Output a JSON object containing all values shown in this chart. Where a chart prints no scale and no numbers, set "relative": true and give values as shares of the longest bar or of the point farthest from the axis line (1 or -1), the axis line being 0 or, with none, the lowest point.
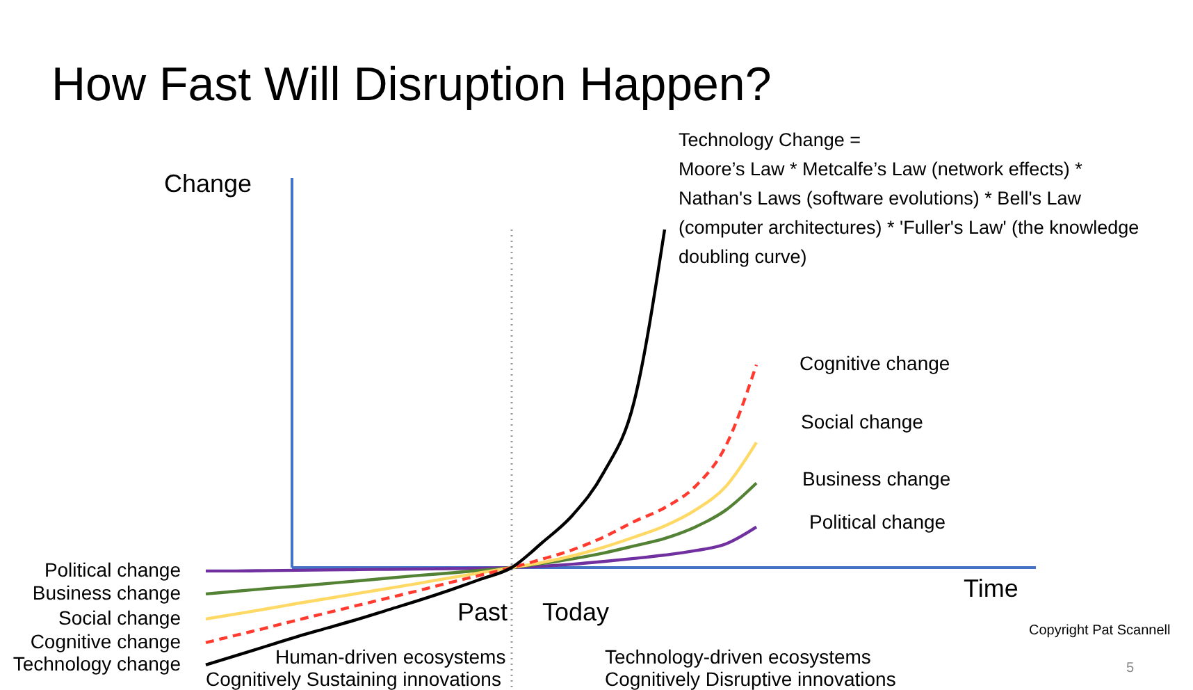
{
  "chart_data": {
    "type": "line",
    "relative": true,
    "title": "How Fast Will Disruption Happen?",
    "ylabel": "Change",
    "categories": [
      null,
      null,
      null,
      null,
      null,
      null,
      null,
      null,
      null,
      null,
      null,
      null,
      null,
      null,
      null,
      null,
      null,
      null,
      null
    ],
    "series": [
      {
        "name": "Political change",
        "color": "#7030a0",
        "line_style": "solid",
        "values": [
          -0.01,
          -0.01,
          -0.009,
          -0.008,
          -0.007,
          -0.006,
          -0.005,
          -0.004,
          -0.003,
          -0.002,
          0,
          0.004,
          0.01,
          0.018,
          0.027,
          0.037,
          0.05,
          0.07,
          0.12
        ]
      },
      {
        "name": "Business change",
        "color": "#548235",
        "line_style": "solid",
        "values": [
          -0.078,
          -0.07,
          -0.062,
          -0.055,
          -0.047,
          -0.039,
          -0.031,
          -0.023,
          -0.016,
          -0.008,
          0,
          0.012,
          0.026,
          0.043,
          0.064,
          0.086,
          0.12,
          0.17,
          0.25
        ]
      },
      {
        "name": "Social change",
        "color": "#ffd966",
        "line_style": "solid",
        "values": [
          -0.152,
          -0.137,
          -0.122,
          -0.106,
          -0.091,
          -0.076,
          -0.061,
          -0.046,
          -0.03,
          -0.015,
          0,
          0.015,
          0.035,
          0.06,
          0.09,
          0.123,
          0.17,
          0.24,
          0.37
        ]
      },
      {
        "name": "Cognitive change",
        "color": "#ff3b30",
        "line_style": "dashed",
        "values": [
          -0.222,
          -0.2,
          -0.178,
          -0.155,
          -0.133,
          -0.111,
          -0.089,
          -0.067,
          -0.044,
          -0.022,
          0,
          0.025,
          0.053,
          0.09,
          0.136,
          0.177,
          0.24,
          0.36,
          0.6
        ]
      },
      {
        "name": "Technology change",
        "color": "#000000",
        "line_style": "solid",
        "values": [
          -0.288,
          -0.26,
          -0.232,
          -0.204,
          -0.178,
          -0.152,
          -0.124,
          -0.096,
          -0.066,
          -0.034,
          0,
          0.074,
          0.156,
          0.28,
          0.49,
          1,
          null,
          null,
          null
        ]
      }
    ],
    "ref_lines": [
      {
        "axis": "y",
        "value": 0,
        "color": "#4472c4"
      }
    ],
    "annotations": [
      "Technology Change =\nMoore’s Law * Metcalfe’s Law (network effects) *\nNathan's Laws (software evolutions) * Bell's Law\n(computer architectures) * 'Fuller's Law' (the knowledge\ndoubling curve)",
      "Past",
      "Today",
      "Human-driven ecosystems",
      "Cognitively Sustaining innovations",
      "Technology-driven ecosystems",
      "Cognitively Disruptive innovations",
      "Copyright Pat Scannell",
      "5",
      "Cognitive change",
      "Social  change",
      "Business change",
      "Political change",
      "Time"
    ]
  }
}
